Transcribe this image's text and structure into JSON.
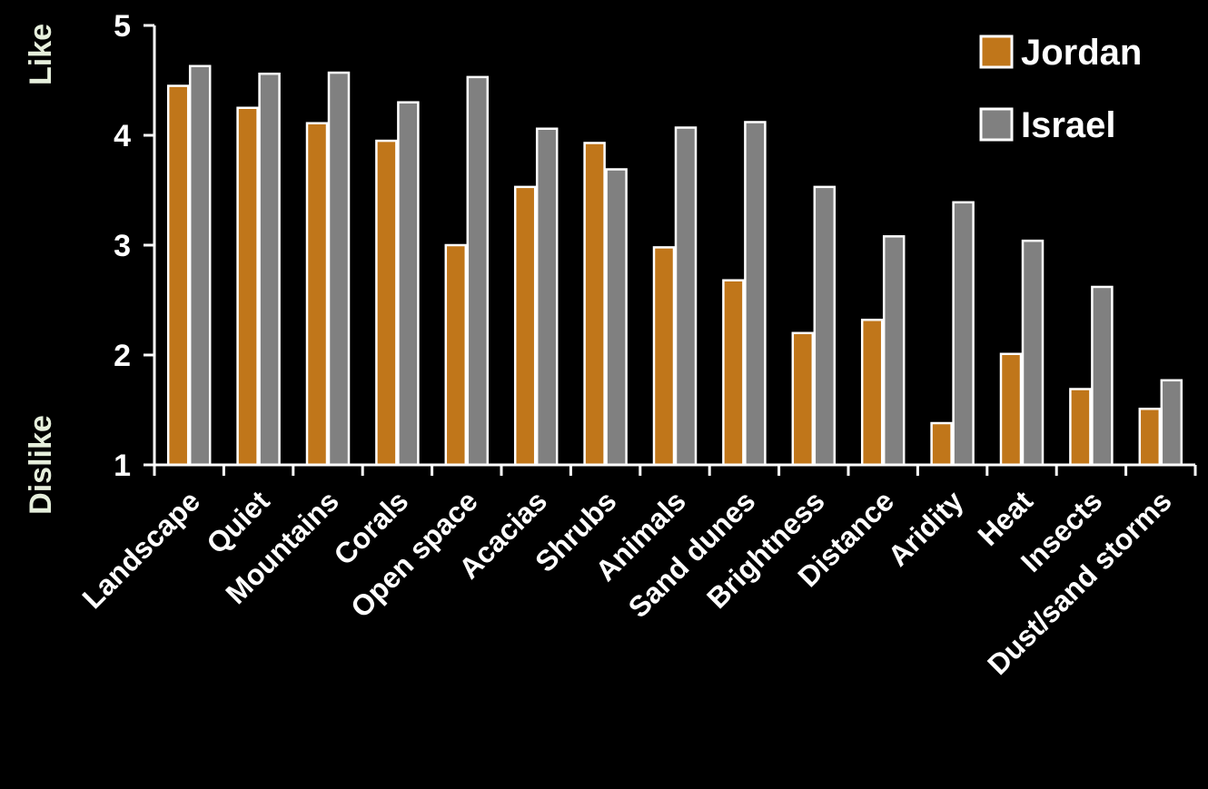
{
  "chart_data": {
    "type": "bar",
    "categories": [
      "Landscape",
      "Quiet",
      "Mountains",
      "Corals",
      "Open space",
      "Acacias",
      "Shrubs",
      "Animals",
      "Sand dunes",
      "Brightness",
      "Distance",
      "Aridity",
      "Heat",
      "Insects",
      "Dust/sand storms"
    ],
    "series": [
      {
        "name": "Jordan",
        "color": "#c0761a",
        "values": [
          4.45,
          4.25,
          4.11,
          3.95,
          3.0,
          3.53,
          3.93,
          2.98,
          2.68,
          2.2,
          2.32,
          1.38,
          2.01,
          1.69,
          1.51
        ]
      },
      {
        "name": "Israel",
        "color": "#808080",
        "values": [
          4.63,
          4.56,
          4.57,
          4.3,
          4.53,
          4.06,
          3.69,
          4.07,
          4.12,
          3.53,
          3.08,
          3.39,
          3.04,
          2.62,
          1.77
        ]
      }
    ],
    "ylim": [
      1,
      5
    ],
    "yticks": [
      "1",
      "2",
      "3",
      "4",
      "5"
    ],
    "ylabel_top": "Like",
    "ylabel_bottom": "Dislike",
    "legend": {
      "position": "top-right",
      "items": [
        "Jordan",
        "Israel"
      ]
    },
    "grid": false
  }
}
